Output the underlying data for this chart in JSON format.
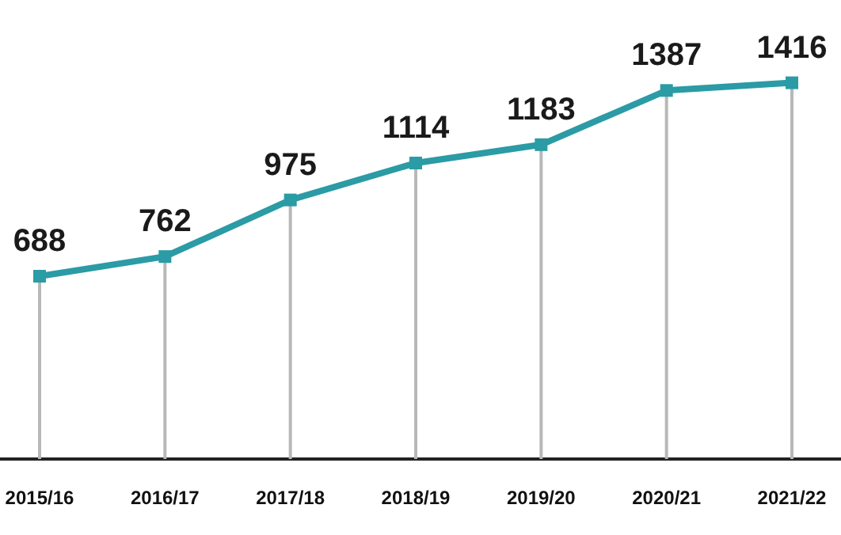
{
  "chart_data": {
    "type": "line",
    "categories": [
      "2015/16",
      "2016/17",
      "2017/18",
      "2018/19",
      "2019/20",
      "2020/21",
      "2021/22"
    ],
    "series": [
      {
        "color": "#2b9ba5",
        "values": [
          688,
          762,
          975,
          1114,
          1183,
          1387,
          1416
        ]
      }
    ],
    "data_labels": true,
    "marker": "square",
    "grid": "x",
    "tick_labels": "x"
  }
}
